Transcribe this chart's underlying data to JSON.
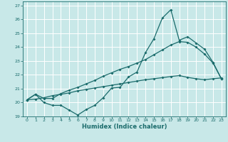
{
  "title": "",
  "xlabel": "Humidex (Indice chaleur)",
  "ylabel": "",
  "xlim": [
    -0.5,
    23.5
  ],
  "ylim": [
    19,
    27.3
  ],
  "xticks": [
    0,
    1,
    2,
    3,
    4,
    5,
    6,
    7,
    8,
    9,
    10,
    11,
    12,
    13,
    14,
    15,
    16,
    17,
    18,
    19,
    20,
    21,
    22,
    23
  ],
  "yticks": [
    19,
    20,
    21,
    22,
    23,
    24,
    25,
    26,
    27
  ],
  "bg_color": "#c8e8e8",
  "line_color": "#1a6b6b",
  "grid_color": "#ffffff",
  "line1_x": [
    0,
    1,
    2,
    3,
    4,
    5,
    6,
    7,
    8,
    9,
    10,
    11,
    12,
    13,
    14,
    15,
    16,
    17,
    18,
    19,
    20,
    21,
    22,
    23
  ],
  "line1_y": [
    20.2,
    20.6,
    20.0,
    19.8,
    19.8,
    19.45,
    19.1,
    19.5,
    19.8,
    20.35,
    21.05,
    21.1,
    21.85,
    22.2,
    23.6,
    24.6,
    26.1,
    26.7,
    24.5,
    24.75,
    24.3,
    23.85,
    22.9,
    21.7
  ],
  "line2_x": [
    0,
    1,
    2,
    3,
    4,
    5,
    6,
    7,
    8,
    9,
    10,
    11,
    12,
    13,
    14,
    15,
    16,
    17,
    18,
    19,
    20,
    21,
    22,
    23
  ],
  "line2_y": [
    20.2,
    20.6,
    20.3,
    20.3,
    20.65,
    20.9,
    21.1,
    21.35,
    21.6,
    21.9,
    22.15,
    22.4,
    22.6,
    22.85,
    23.1,
    23.45,
    23.8,
    24.15,
    24.4,
    24.35,
    24.0,
    23.5,
    22.85,
    21.7
  ],
  "line3_x": [
    0,
    1,
    2,
    3,
    4,
    5,
    6,
    7,
    8,
    9,
    10,
    11,
    12,
    13,
    14,
    15,
    16,
    17,
    18,
    19,
    20,
    21,
    22,
    23
  ],
  "line3_y": [
    20.2,
    20.25,
    20.35,
    20.5,
    20.6,
    20.7,
    20.85,
    20.95,
    21.05,
    21.15,
    21.25,
    21.35,
    21.45,
    21.55,
    21.65,
    21.72,
    21.8,
    21.88,
    21.95,
    21.82,
    21.72,
    21.65,
    21.72,
    21.78
  ]
}
